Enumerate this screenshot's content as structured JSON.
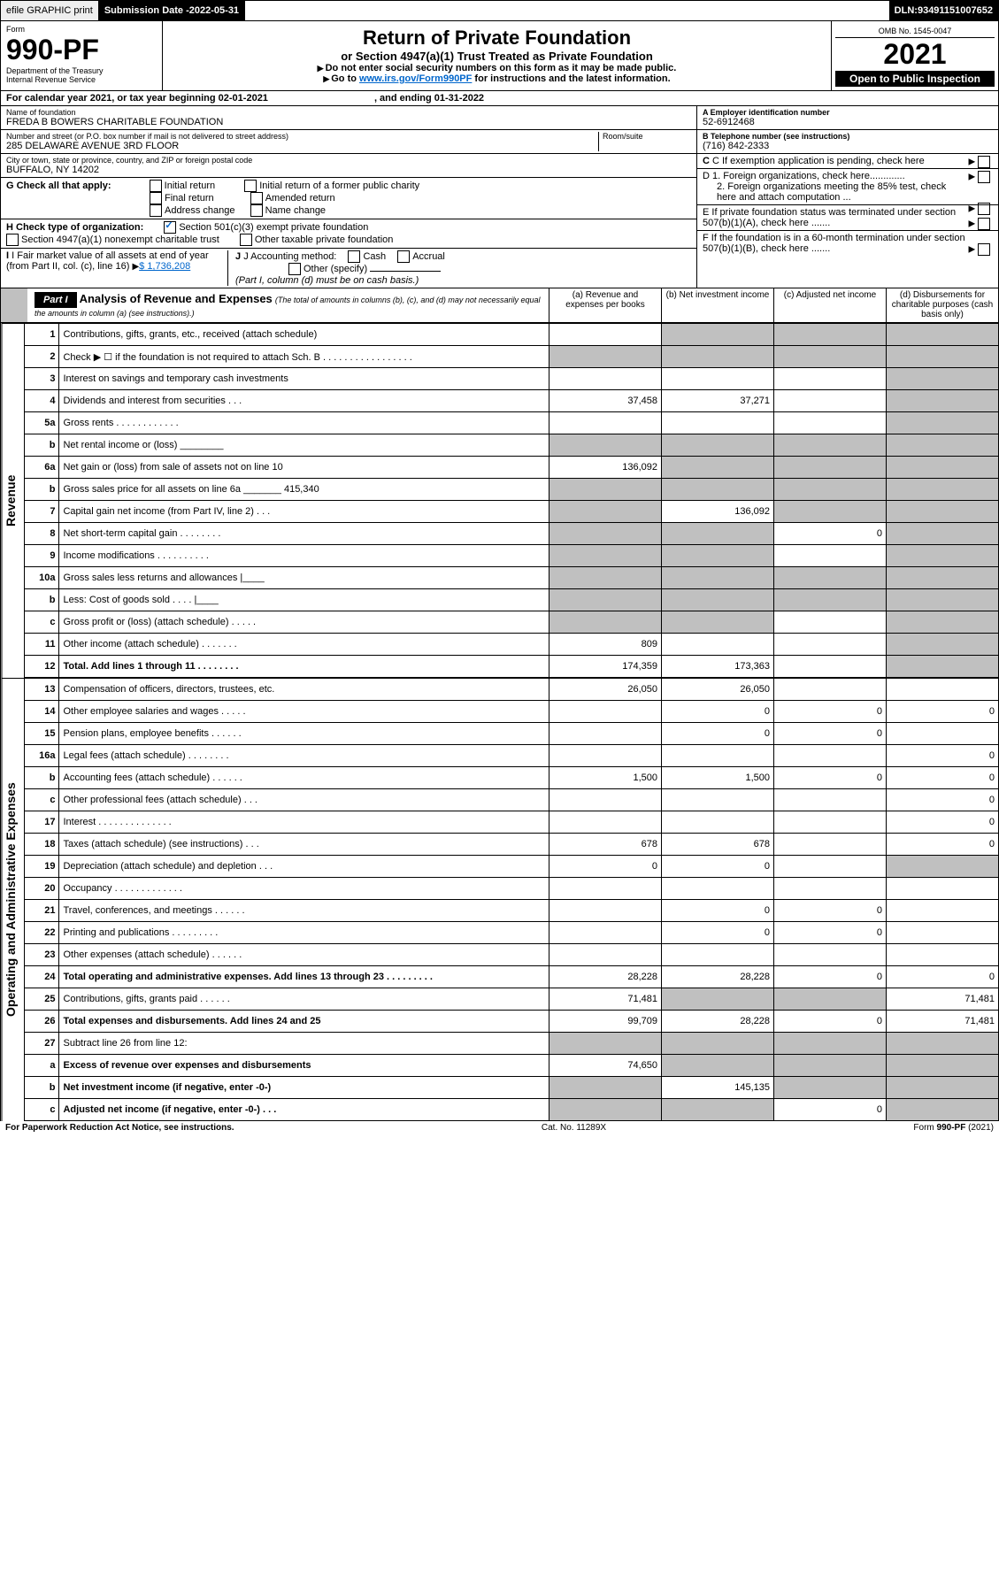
{
  "topbar": {
    "efile": "efile GRAPHIC print",
    "subdate_label": "Submission Date - ",
    "subdate": "2022-05-31",
    "dln_label": "DLN: ",
    "dln": "93491151007652"
  },
  "header": {
    "form_label": "Form",
    "form_no": "990-PF",
    "dept": "Department of the Treasury",
    "irs": "Internal Revenue Service",
    "title": "Return of Private Foundation",
    "subtitle": "or Section 4947(a)(1) Trust Treated as Private Foundation",
    "instr1": "Do not enter social security numbers on this form as it may be made public.",
    "instr2_pre": "Go to ",
    "instr2_link": "www.irs.gov/Form990PF",
    "instr2_post": " for instructions and the latest information.",
    "omb": "OMB No. 1545-0047",
    "year": "2021",
    "open": "Open to Public Inspection"
  },
  "calendar": {
    "pre": "For calendar year 2021, or tax year beginning ",
    "begin": "02-01-2021",
    "mid": ", and ending ",
    "end": "01-31-2022"
  },
  "ident": {
    "name_label": "Name of foundation",
    "name": "FREDA B BOWERS CHARITABLE FOUNDATION",
    "addr_label": "Number and street (or P.O. box number if mail is not delivered to street address)",
    "addr": "285 DELAWARE AVENUE 3RD FLOOR",
    "room_label": "Room/suite",
    "city_label": "City or town, state or province, country, and ZIP or foreign postal code",
    "city": "BUFFALO, NY  14202",
    "ein_label": "A Employer identification number",
    "ein": "52-6912468",
    "tel_label": "B Telephone number (see instructions)",
    "tel": "(716) 842-2333",
    "c_label": "C If exemption application is pending, check here",
    "d1": "D 1. Foreign organizations, check here.............",
    "d2": "2. Foreign organizations meeting the 85% test, check here and attach computation ...",
    "e_label": "E  If private foundation status was terminated under section 507(b)(1)(A), check here .......",
    "f_label": "F  If the foundation is in a 60-month termination under section 507(b)(1)(B), check here .......",
    "g_label": "G Check all that apply:",
    "g_opts": [
      "Initial return",
      "Final return",
      "Address change",
      "Initial return of a former public charity",
      "Amended return",
      "Name change"
    ],
    "h_label": "H Check type of organization:",
    "h_opt1": "Section 501(c)(3) exempt private foundation",
    "h_opt2": "Section 4947(a)(1) nonexempt charitable trust",
    "h_opt3": "Other taxable private foundation",
    "i_label": "I Fair market value of all assets at end of year (from Part II, col. (c), line 16)",
    "i_val": "$  1,736,208",
    "j_label": "J Accounting method:",
    "j_opts": [
      "Cash",
      "Accrual"
    ],
    "j_other": "Other (specify)",
    "j_note": "(Part I, column (d) must be on cash basis.)"
  },
  "part1": {
    "label": "Part I",
    "title": "Analysis of Revenue and Expenses",
    "note": "(The total of amounts in columns (b), (c), and (d) may not necessarily equal the amounts in column (a) (see instructions).)",
    "cols": {
      "a": "(a)  Revenue and expenses per books",
      "b": "(b)  Net investment income",
      "c": "(c)  Adjusted net income",
      "d": "(d)  Disbursements for charitable purposes (cash basis only)"
    }
  },
  "sections": {
    "revenue": "Revenue",
    "opex": "Operating and Administrative Expenses"
  },
  "lines": [
    {
      "no": "1",
      "desc": "Contributions, gifts, grants, etc., received (attach schedule)",
      "a": "",
      "b": "g",
      "c": "g",
      "d": "g"
    },
    {
      "no": "2",
      "desc": "Check ▶ ☐ if the foundation is not required to attach Sch. B  . . . . . . . . . . . . . . . . .",
      "a": "g",
      "b": "g",
      "c": "g",
      "d": "g"
    },
    {
      "no": "3",
      "desc": "Interest on savings and temporary cash investments",
      "a": "",
      "b": "",
      "c": "",
      "d": "g"
    },
    {
      "no": "4",
      "desc": "Dividends and interest from securities    .  .  .",
      "a": "37,458",
      "b": "37,271",
      "c": "",
      "d": "g"
    },
    {
      "no": "5a",
      "desc": "Gross rents    .  .  .  .  .  .  .  .  .  .  .  .",
      "a": "",
      "b": "",
      "c": "",
      "d": "g"
    },
    {
      "no": "b",
      "desc": "Net rental income or (loss)  ________",
      "a": "g",
      "b": "g",
      "c": "g",
      "d": "g"
    },
    {
      "no": "6a",
      "desc": "Net gain or (loss) from sale of assets not on line 10",
      "a": "136,092",
      "b": "g",
      "c": "g",
      "d": "g"
    },
    {
      "no": "b",
      "desc": "Gross sales price for all assets on line 6a _______ 415,340",
      "a": "g",
      "b": "g",
      "c": "g",
      "d": "g"
    },
    {
      "no": "7",
      "desc": "Capital gain net income (from Part IV, line 2)  .  .  .",
      "a": "g",
      "b": "136,092",
      "c": "g",
      "d": "g"
    },
    {
      "no": "8",
      "desc": "Net short-term capital gain  .  .  .  .  .  .  .  .",
      "a": "g",
      "b": "g",
      "c": "0",
      "d": "g"
    },
    {
      "no": "9",
      "desc": "Income modifications  .  .  .  .  .  .  .  .  .  .",
      "a": "g",
      "b": "g",
      "c": "",
      "d": "g"
    },
    {
      "no": "10a",
      "desc": "Gross sales less returns and allowances  |____",
      "a": "g",
      "b": "g",
      "c": "g",
      "d": "g"
    },
    {
      "no": "b",
      "desc": "Less: Cost of goods sold  .  .  .  .  |____",
      "a": "g",
      "b": "g",
      "c": "g",
      "d": "g"
    },
    {
      "no": "c",
      "desc": "Gross profit or (loss) (attach schedule)  .  .  .  .  .",
      "a": "g",
      "b": "g",
      "c": "",
      "d": "g"
    },
    {
      "no": "11",
      "desc": "Other income (attach schedule)  .  .  .  .  .  .  .",
      "a": "809",
      "b": "",
      "c": "",
      "d": "g"
    },
    {
      "no": "12",
      "desc": "Total. Add lines 1 through 11  .  .  .  .  .  .  .  .",
      "a": "174,359",
      "b": "173,363",
      "c": "",
      "d": "g",
      "bold": true
    }
  ],
  "oplines": [
    {
      "no": "13",
      "desc": "Compensation of officers, directors, trustees, etc.",
      "a": "26,050",
      "b": "26,050",
      "c": "",
      "d": ""
    },
    {
      "no": "14",
      "desc": "Other employee salaries and wages  .  .  .  .  .",
      "a": "",
      "b": "0",
      "c": "0",
      "d": "0"
    },
    {
      "no": "15",
      "desc": "Pension plans, employee benefits  .  .  .  .  .  .",
      "a": "",
      "b": "0",
      "c": "0",
      "d": ""
    },
    {
      "no": "16a",
      "desc": "Legal fees (attach schedule)  .  .  .  .  .  .  .  .",
      "a": "",
      "b": "",
      "c": "",
      "d": "0"
    },
    {
      "no": "b",
      "desc": "Accounting fees (attach schedule)  .  .  .  .  .  .",
      "a": "1,500",
      "b": "1,500",
      "c": "0",
      "d": "0"
    },
    {
      "no": "c",
      "desc": "Other professional fees (attach schedule)  .  .  .",
      "a": "",
      "b": "",
      "c": "",
      "d": "0"
    },
    {
      "no": "17",
      "desc": "Interest  .  .  .  .  .  .  .  .  .  .  .  .  .  .",
      "a": "",
      "b": "",
      "c": "",
      "d": "0"
    },
    {
      "no": "18",
      "desc": "Taxes (attach schedule) (see instructions)  .  .  .",
      "a": "678",
      "b": "678",
      "c": "",
      "d": "0"
    },
    {
      "no": "19",
      "desc": "Depreciation (attach schedule) and depletion  .  .  .",
      "a": "0",
      "b": "0",
      "c": "",
      "d": "g"
    },
    {
      "no": "20",
      "desc": "Occupancy  .  .  .  .  .  .  .  .  .  .  .  .  .",
      "a": "",
      "b": "",
      "c": "",
      "d": ""
    },
    {
      "no": "21",
      "desc": "Travel, conferences, and meetings  .  .  .  .  .  .",
      "a": "",
      "b": "0",
      "c": "0",
      "d": ""
    },
    {
      "no": "22",
      "desc": "Printing and publications  .  .  .  .  .  .  .  .  .",
      "a": "",
      "b": "0",
      "c": "0",
      "d": ""
    },
    {
      "no": "23",
      "desc": "Other expenses (attach schedule)  .  .  .  .  .  .",
      "a": "",
      "b": "",
      "c": "",
      "d": ""
    },
    {
      "no": "24",
      "desc": "Total operating and administrative expenses. Add lines 13 through 23  .  .  .  .  .  .  .  .  .",
      "a": "28,228",
      "b": "28,228",
      "c": "0",
      "d": "0",
      "bold": true
    },
    {
      "no": "25",
      "desc": "Contributions, gifts, grants paid  .  .  .  .  .  .",
      "a": "71,481",
      "b": "g",
      "c": "g",
      "d": "71,481"
    },
    {
      "no": "26",
      "desc": "Total expenses and disbursements. Add lines 24 and 25",
      "a": "99,709",
      "b": "28,228",
      "c": "0",
      "d": "71,481",
      "bold": true
    },
    {
      "no": "27",
      "desc": "Subtract line 26 from line 12:",
      "a": "g",
      "b": "g",
      "c": "g",
      "d": "g"
    },
    {
      "no": "a",
      "desc": "Excess of revenue over expenses and disbursements",
      "a": "74,650",
      "b": "g",
      "c": "g",
      "d": "g",
      "bold": true
    },
    {
      "no": "b",
      "desc": "Net investment income (if negative, enter -0-)",
      "a": "g",
      "b": "145,135",
      "c": "g",
      "d": "g",
      "bold": true
    },
    {
      "no": "c",
      "desc": "Adjusted net income (if negative, enter -0-)  .  .  .",
      "a": "g",
      "b": "g",
      "c": "0",
      "d": "g",
      "bold": true
    }
  ],
  "footer": {
    "left": "For Paperwork Reduction Act Notice, see instructions.",
    "mid": "Cat. No. 11289X",
    "right": "Form 990-PF (2021)"
  }
}
